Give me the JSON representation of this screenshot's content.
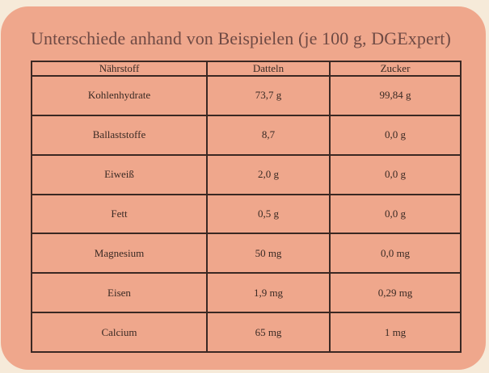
{
  "title": "Unterschiede anhand von Beispielen (je 100 g, DGExpert)",
  "table": {
    "headers": [
      "Nährstoff",
      "Datteln",
      "Zucker"
    ],
    "rows": [
      [
        "Kohlenhydrate",
        "73,7 g",
        "99,84 g"
      ],
      [
        "Ballaststoffe",
        "8,7",
        "0,0 g"
      ],
      [
        "Eiweiß",
        "2,0 g",
        "0,0 g"
      ],
      [
        "Fett",
        "0,5 g",
        "0,0 g"
      ],
      [
        "Magnesium",
        "50 mg",
        "0,0 mg"
      ],
      [
        "Eisen",
        "1,9 mg",
        "0,29 mg"
      ],
      [
        "Calcium",
        "65 mg",
        "1 mg"
      ]
    ]
  },
  "colors": {
    "page_background": "#f6ead9",
    "card_background": "#efa78c",
    "title_text": "#6f4a44",
    "table_border": "#3a2823",
    "body_text": "#3a2a24"
  }
}
